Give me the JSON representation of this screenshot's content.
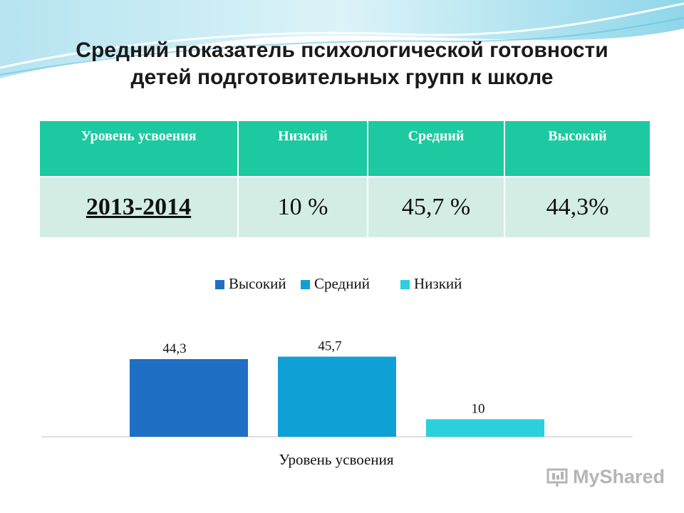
{
  "title_line1": "Средний  показатель  психологической готовности",
  "title_line2": "детей подготовительных групп к школе",
  "table": {
    "headers": [
      "Уровень усвоения",
      "Низкий",
      "Средний",
      "Высокий"
    ],
    "row": [
      "2013-2014",
      "10 %",
      "45,7 %",
      "44,3%"
    ]
  },
  "colors": {
    "table_header": "#1cc9a0",
    "table_row": "#d3ede5",
    "high": "#1f6fc4",
    "medium": "#0fa0d6",
    "low": "#2ad0dc"
  },
  "watermark": "MyShared",
  "chart_data": {
    "type": "bar",
    "categories": [
      "Уровень усвоения"
    ],
    "series": [
      {
        "name": "Высокий",
        "values": [
          44.3
        ],
        "label": "44,3",
        "color": "#1f6fc4"
      },
      {
        "name": "Средний",
        "values": [
          45.7
        ],
        "label": "45,7",
        "color": "#0fa0d6"
      },
      {
        "name": "Низкий",
        "values": [
          10
        ],
        "label": "10",
        "color": "#2ad0dc"
      }
    ],
    "xlabel": "Уровень усвоения",
    "ylim": [
      0,
      50
    ],
    "grid": false,
    "legend": "top"
  }
}
